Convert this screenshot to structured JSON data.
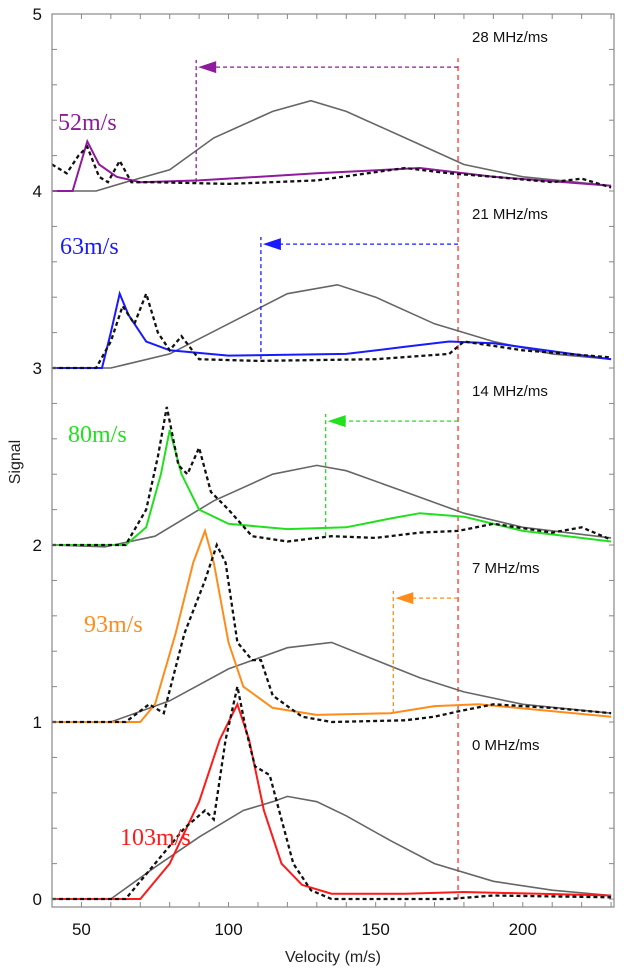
{
  "chart_data": {
    "type": "line",
    "title": "",
    "xlabel": "Velocity (m/s)",
    "ylabel": "Signal",
    "xlim": [
      40,
      231
    ],
    "ylim": [
      -0.045,
      5
    ],
    "xticks": [
      50,
      100,
      150,
      200
    ],
    "yticks": [
      0,
      1,
      2,
      3,
      4,
      5
    ],
    "grid": false,
    "legend": "none",
    "reference_velocity": 178,
    "reference_color": "#ff4d4d",
    "panels": [
      {
        "ramp_label": "0 MHz/ms",
        "speed_label": "103m/s",
        "color": "#ff1a1a",
        "offset": 0,
        "shifted_velocity": null,
        "simulated": [
          [
            40,
            0
          ],
          [
            70,
            0
          ],
          [
            80,
            0.2
          ],
          [
            90,
            0.55
          ],
          [
            97,
            0.9
          ],
          [
            103,
            1.1
          ],
          [
            107,
            0.9
          ],
          [
            112,
            0.5
          ],
          [
            118,
            0.2
          ],
          [
            125,
            0.08
          ],
          [
            135,
            0.03
          ],
          [
            160,
            0.03
          ],
          [
            180,
            0.04
          ],
          [
            230,
            0.02
          ]
        ],
        "experimental": [
          [
            40,
            0
          ],
          [
            65,
            0
          ],
          [
            75,
            0.2
          ],
          [
            85,
            0.4
          ],
          [
            92,
            0.5
          ],
          [
            95,
            0.45
          ],
          [
            99,
            0.9
          ],
          [
            103,
            1.2
          ],
          [
            106,
            0.95
          ],
          [
            109,
            0.75
          ],
          [
            114,
            0.7
          ],
          [
            118,
            0.45
          ],
          [
            122,
            0.2
          ],
          [
            128,
            0.05
          ],
          [
            135,
            0
          ],
          [
            175,
            0
          ],
          [
            190,
            0.02
          ],
          [
            230,
            0.01
          ]
        ],
        "reference": [
          [
            40,
            0
          ],
          [
            60,
            0
          ],
          [
            75,
            0.18
          ],
          [
            90,
            0.35
          ],
          [
            105,
            0.5
          ],
          [
            115,
            0.55
          ],
          [
            120,
            0.58
          ],
          [
            130,
            0.55
          ],
          [
            140,
            0.47
          ],
          [
            155,
            0.33
          ],
          [
            170,
            0.2
          ],
          [
            190,
            0.1
          ],
          [
            210,
            0.05
          ],
          [
            230,
            0.02
          ]
        ]
      },
      {
        "ramp_label": "7 MHz/ms",
        "speed_label": "93m/s",
        "color": "#ff8c1a",
        "offset": 1,
        "shifted_velocity": 156,
        "simulated": [
          [
            40,
            1
          ],
          [
            70,
            1
          ],
          [
            75,
            1.1
          ],
          [
            82,
            1.5
          ],
          [
            88,
            1.9
          ],
          [
            92,
            2.08
          ],
          [
            95,
            1.9
          ],
          [
            100,
            1.45
          ],
          [
            105,
            1.2
          ],
          [
            115,
            1.08
          ],
          [
            130,
            1.04
          ],
          [
            155,
            1.05
          ],
          [
            170,
            1.09
          ],
          [
            185,
            1.1
          ],
          [
            230,
            1.03
          ]
        ],
        "experimental": [
          [
            40,
            1
          ],
          [
            65,
            1
          ],
          [
            73,
            1.1
          ],
          [
            78,
            1.05
          ],
          [
            85,
            1.5
          ],
          [
            92,
            1.8
          ],
          [
            96,
            2.0
          ],
          [
            99,
            1.9
          ],
          [
            103,
            1.45
          ],
          [
            108,
            1.35
          ],
          [
            111,
            1.35
          ],
          [
            115,
            1.15
          ],
          [
            125,
            1.03
          ],
          [
            135,
            1.0
          ],
          [
            160,
            1.01
          ],
          [
            170,
            1.03
          ],
          [
            178,
            1.06
          ],
          [
            190,
            1.1
          ],
          [
            210,
            1.08
          ],
          [
            230,
            1.05
          ]
        ],
        "reference": [
          [
            40,
            1
          ],
          [
            60,
            1
          ],
          [
            80,
            1.12
          ],
          [
            100,
            1.3
          ],
          [
            120,
            1.42
          ],
          [
            135,
            1.45
          ],
          [
            150,
            1.35
          ],
          [
            165,
            1.25
          ],
          [
            180,
            1.17
          ],
          [
            200,
            1.1
          ],
          [
            230,
            1.05
          ]
        ]
      },
      {
        "ramp_label": "14 MHz/ms",
        "speed_label": "80m/s",
        "color": "#22e01e",
        "offset": 2,
        "shifted_velocity": 133,
        "simulated": [
          [
            40,
            2
          ],
          [
            65,
            2
          ],
          [
            72,
            2.1
          ],
          [
            77,
            2.4
          ],
          [
            80,
            2.65
          ],
          [
            84,
            2.4
          ],
          [
            90,
            2.2
          ],
          [
            100,
            2.12
          ],
          [
            120,
            2.09
          ],
          [
            140,
            2.1
          ],
          [
            155,
            2.15
          ],
          [
            165,
            2.18
          ],
          [
            180,
            2.16
          ],
          [
            200,
            2.08
          ],
          [
            230,
            2.02
          ]
        ],
        "experimental": [
          [
            40,
            2
          ],
          [
            65,
            2
          ],
          [
            72,
            2.2
          ],
          [
            76,
            2.5
          ],
          [
            79,
            2.78
          ],
          [
            83,
            2.45
          ],
          [
            86,
            2.4
          ],
          [
            90,
            2.55
          ],
          [
            94,
            2.3
          ],
          [
            100,
            2.2
          ],
          [
            108,
            2.05
          ],
          [
            120,
            2.02
          ],
          [
            135,
            2.05
          ],
          [
            150,
            2.04
          ],
          [
            165,
            2.07
          ],
          [
            178,
            2.08
          ],
          [
            190,
            2.12
          ],
          [
            210,
            2.07
          ],
          [
            220,
            2.1
          ],
          [
            230,
            2.03
          ]
        ],
        "reference": [
          [
            40,
            2
          ],
          [
            58,
            1.99
          ],
          [
            75,
            2.05
          ],
          [
            95,
            2.25
          ],
          [
            115,
            2.4
          ],
          [
            130,
            2.45
          ],
          [
            140,
            2.42
          ],
          [
            160,
            2.3
          ],
          [
            180,
            2.18
          ],
          [
            200,
            2.1
          ],
          [
            230,
            2.04
          ]
        ]
      },
      {
        "ramp_label": "21 MHz/ms",
        "speed_label": "63m/s",
        "color": "#1a1aff",
        "offset": 3,
        "shifted_velocity": 111,
        "simulated": [
          [
            40,
            3
          ],
          [
            57,
            3
          ],
          [
            60,
            3.2
          ],
          [
            63,
            3.42
          ],
          [
            66,
            3.3
          ],
          [
            72,
            3.15
          ],
          [
            80,
            3.1
          ],
          [
            100,
            3.07
          ],
          [
            140,
            3.08
          ],
          [
            160,
            3.12
          ],
          [
            175,
            3.15
          ],
          [
            190,
            3.14
          ],
          [
            230,
            3.05
          ]
        ],
        "experimental": [
          [
            40,
            3
          ],
          [
            55,
            3
          ],
          [
            60,
            3.15
          ],
          [
            64,
            3.35
          ],
          [
            68,
            3.25
          ],
          [
            72,
            3.42
          ],
          [
            76,
            3.2
          ],
          [
            80,
            3.1
          ],
          [
            84,
            3.18
          ],
          [
            90,
            3.05
          ],
          [
            110,
            3.04
          ],
          [
            150,
            3.05
          ],
          [
            175,
            3.08
          ],
          [
            180,
            3.15
          ],
          [
            200,
            3.1
          ],
          [
            230,
            3.06
          ]
        ],
        "reference": [
          [
            40,
            3
          ],
          [
            60,
            3
          ],
          [
            80,
            3.08
          ],
          [
            100,
            3.25
          ],
          [
            120,
            3.42
          ],
          [
            137,
            3.47
          ],
          [
            150,
            3.4
          ],
          [
            170,
            3.25
          ],
          [
            190,
            3.15
          ],
          [
            210,
            3.08
          ],
          [
            230,
            3.05
          ]
        ]
      },
      {
        "ramp_label": "28 MHz/ms",
        "speed_label": "52m/s",
        "color": "#8e1a9c",
        "offset": 4,
        "shifted_velocity": 89,
        "simulated": [
          [
            40,
            4
          ],
          [
            47,
            4
          ],
          [
            52,
            4.28
          ],
          [
            56,
            4.15
          ],
          [
            62,
            4.08
          ],
          [
            70,
            4.05
          ],
          [
            90,
            4.06
          ],
          [
            130,
            4.1
          ],
          [
            165,
            4.13
          ],
          [
            190,
            4.08
          ],
          [
            230,
            4.03
          ]
        ],
        "experimental": [
          [
            40,
            4.15
          ],
          [
            45,
            4.1
          ],
          [
            49,
            4.2
          ],
          [
            52,
            4.25
          ],
          [
            56,
            4.08
          ],
          [
            59,
            4.05
          ],
          [
            63,
            4.17
          ],
          [
            67,
            4.05
          ],
          [
            75,
            4.05
          ],
          [
            100,
            4.04
          ],
          [
            130,
            4.06
          ],
          [
            160,
            4.13
          ],
          [
            175,
            4.1
          ],
          [
            190,
            4.08
          ],
          [
            210,
            4.05
          ],
          [
            220,
            4.07
          ],
          [
            230,
            4.02
          ]
        ],
        "reference": [
          [
            40,
            4
          ],
          [
            55,
            4
          ],
          [
            65,
            4.05
          ],
          [
            80,
            4.12
          ],
          [
            95,
            4.3
          ],
          [
            115,
            4.45
          ],
          [
            128,
            4.51
          ],
          [
            140,
            4.45
          ],
          [
            160,
            4.3
          ],
          [
            180,
            4.15
          ],
          [
            200,
            4.08
          ],
          [
            230,
            4.03
          ]
        ]
      }
    ]
  }
}
